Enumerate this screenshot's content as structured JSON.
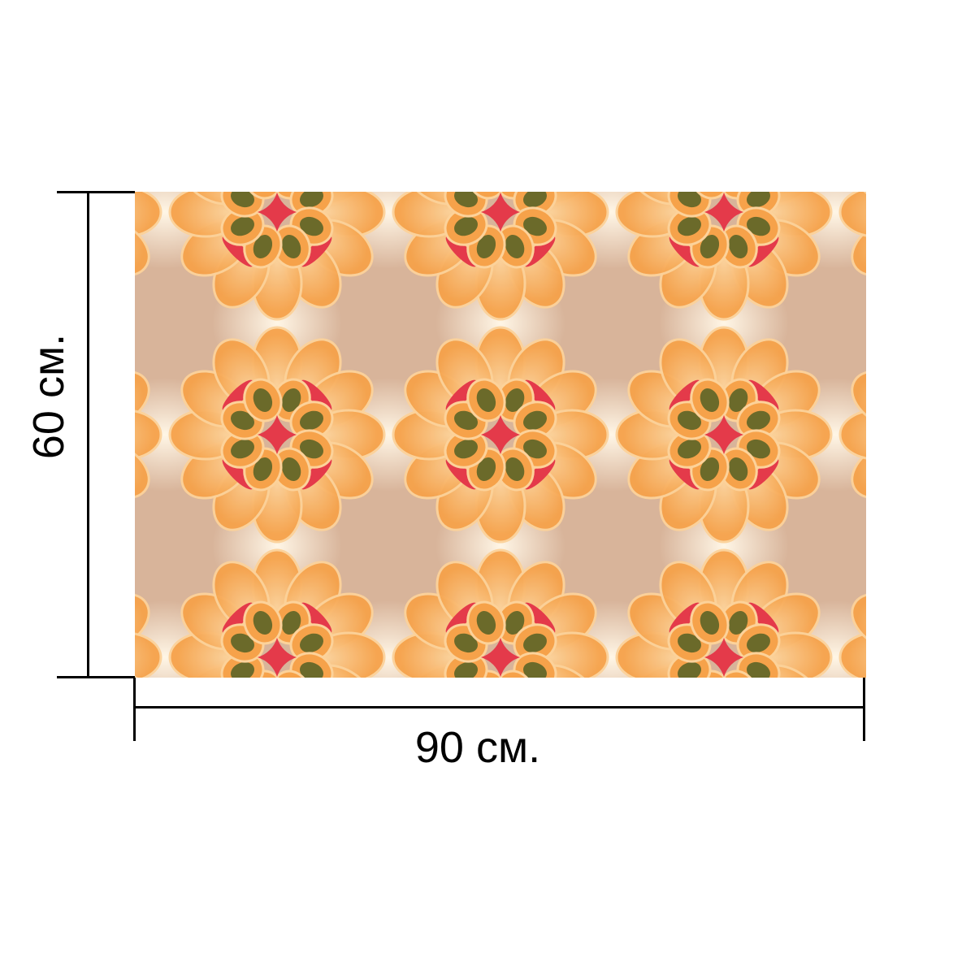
{
  "product": {
    "pattern_name": "orange-kaleidoscope-pattern",
    "pattern_colors": {
      "background": "#d8b49a",
      "petal": "#f6a24a",
      "petal_light": "#fcd29a",
      "accent_red": "#e43a4a",
      "seed": "#6b6a2a",
      "glow": "#fff6e6"
    }
  },
  "dimensions": {
    "width_label": "90 см.",
    "height_label": "60 см."
  }
}
